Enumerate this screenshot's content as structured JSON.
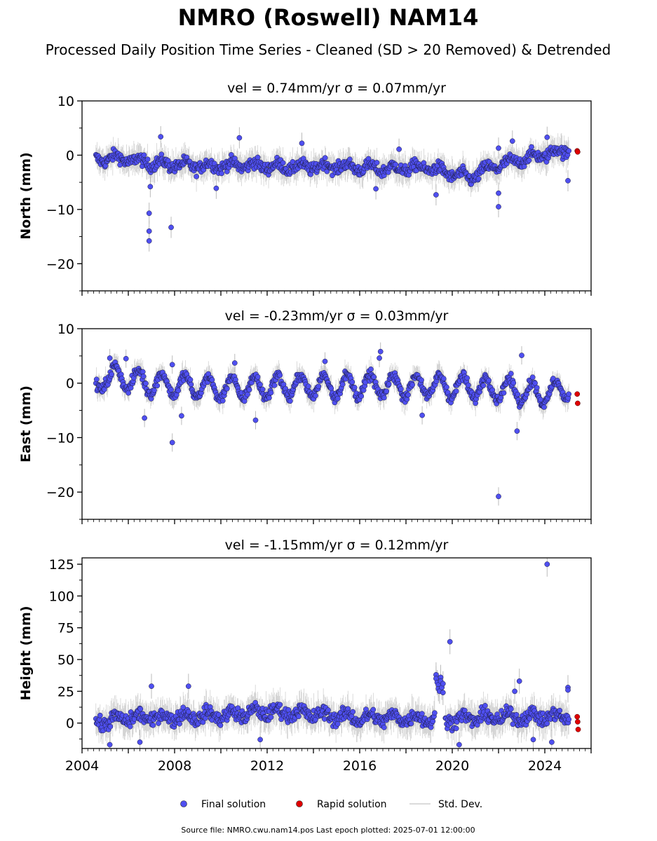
{
  "figure": {
    "title": "NMRO (Roswell) NAM14",
    "subtitle": "Processed Daily Position Time Series - Cleaned (SD > 20 Removed) & Detrended",
    "source": "Source file: NMRO.cwu.nam14.pos  Last epoch plotted: 2025-07-01 12:00:00"
  },
  "legend": {
    "final": "Final solution",
    "rapid": "Rapid solution",
    "sd": "Std. Dev."
  },
  "colors": {
    "final": "#4f4ff0",
    "rapid": "#e00000",
    "sd": "#bdbdbd"
  },
  "chart_data": [
    {
      "type": "scatter",
      "name": "north",
      "title": "vel = 0.74mm/yr   σ = 0.07mm/yr",
      "xlabel": "",
      "ylabel": "North (mm)",
      "xlim": [
        2004,
        2026
      ],
      "ylim": [
        -25,
        10
      ],
      "xticks": [
        2004,
        2008,
        2012,
        2016,
        2020,
        2024
      ],
      "yticks": [
        10,
        0,
        -10,
        -20
      ],
      "ytick_labels": [
        "10",
        "0",
        "−10",
        "−20"
      ],
      "grid": false,
      "show_xtick_labels": false,
      "baseline": [
        [
          2004.0,
          -1.0
        ],
        [
          2005.5,
          -0.5
        ],
        [
          2007.0,
          -1.5
        ],
        [
          2009.0,
          -2.0
        ],
        [
          2011.0,
          -1.8
        ],
        [
          2013.0,
          -2.2
        ],
        [
          2015.0,
          -2.0
        ],
        [
          2017.0,
          -2.5
        ],
        [
          2019.0,
          -2.3
        ],
        [
          2020.0,
          -3.5
        ],
        [
          2020.8,
          -4.2
        ],
        [
          2021.5,
          -2.5
        ],
        [
          2023.0,
          -0.8
        ],
        [
          2024.5,
          0.6
        ],
        [
          2025.1,
          1.0
        ]
      ],
      "noise": 1.4,
      "seasonal": 0.6,
      "outliers": [
        [
          2006.9,
          -15.8
        ],
        [
          2006.9,
          -14.0
        ],
        [
          2006.9,
          -10.7
        ],
        [
          2006.95,
          -5.8
        ],
        [
          2007.85,
          -13.3
        ],
        [
          2007.4,
          3.4
        ],
        [
          2010.8,
          3.2
        ],
        [
          2013.5,
          2.2
        ],
        [
          2017.7,
          1.1
        ],
        [
          2019.3,
          -7.3
        ],
        [
          2022.0,
          -9.5
        ],
        [
          2022.0,
          -7.0
        ],
        [
          2022.0,
          1.3
        ],
        [
          2022.6,
          2.6
        ],
        [
          2024.1,
          3.3
        ],
        [
          2025.0,
          -4.7
        ],
        [
          2009.8,
          -6.1
        ],
        [
          2016.7,
          -6.2
        ]
      ],
      "rapid": [
        [
          2025.4,
          0.8
        ],
        [
          2025.42,
          0.6
        ]
      ]
    },
    {
      "type": "scatter",
      "name": "east",
      "title": "vel = -0.23mm/yr   σ = 0.03mm/yr",
      "xlabel": "",
      "ylabel": "East (mm)",
      "xlim": [
        2004,
        2026
      ],
      "ylim": [
        -25,
        10
      ],
      "xticks": [
        2004,
        2008,
        2012,
        2016,
        2020,
        2024
      ],
      "yticks": [
        10,
        0,
        -10,
        -20
      ],
      "ytick_labels": [
        "10",
        "0",
        "−10",
        "−20"
      ],
      "grid": false,
      "show_xtick_labels": false,
      "baseline": [
        [
          2004.5,
          -2.0
        ],
        [
          2005.0,
          1.5
        ],
        [
          2007.0,
          0.0
        ],
        [
          2010.0,
          -1.0
        ],
        [
          2013.0,
          -0.5
        ],
        [
          2016.0,
          -0.5
        ],
        [
          2019.0,
          -0.5
        ],
        [
          2022.0,
          -1.0
        ],
        [
          2024.0,
          -2.0
        ],
        [
          2025.0,
          -1.0
        ]
      ],
      "noise": 1.2,
      "seasonal": 2.0,
      "outliers": [
        [
          2007.9,
          -10.9
        ],
        [
          2005.2,
          4.6
        ],
        [
          2005.9,
          4.5
        ],
        [
          2007.9,
          3.4
        ],
        [
          2008.3,
          -6.0
        ],
        [
          2010.6,
          3.7
        ],
        [
          2011.5,
          -6.8
        ],
        [
          2016.9,
          5.8
        ],
        [
          2018.7,
          -5.9
        ],
        [
          2022.0,
          -20.8
        ],
        [
          2022.8,
          -8.8
        ],
        [
          2023.0,
          5.1
        ],
        [
          2006.7,
          -6.4
        ],
        [
          2014.5,
          4.0
        ],
        [
          2016.85,
          4.6
        ]
      ],
      "rapid": [
        [
          2025.4,
          -2.0
        ],
        [
          2025.42,
          -3.7
        ]
      ]
    },
    {
      "type": "scatter",
      "name": "height",
      "title": "vel = -1.15mm/yr   σ = 0.12mm/yr",
      "xlabel": "",
      "ylabel": "Height (mm)",
      "xlim": [
        2004,
        2026
      ],
      "ylim": [
        -20,
        130
      ],
      "xticks": [
        2004,
        2008,
        2012,
        2016,
        2020,
        2024
      ],
      "xtick_labels": [
        "2004",
        "2008",
        "2012",
        "2016",
        "2020",
        "2024"
      ],
      "yticks": [
        125,
        100,
        75,
        50,
        25,
        0
      ],
      "ytick_labels": [
        "125",
        "100",
        "75",
        "50",
        "25",
        "0"
      ],
      "grid": false,
      "show_xtick_labels": true,
      "baseline": [
        [
          2004.5,
          0.0
        ],
        [
          2006.0,
          4.0
        ],
        [
          2008.0,
          5.0
        ],
        [
          2010.0,
          6.0
        ],
        [
          2012.0,
          9.0
        ],
        [
          2014.0,
          7.0
        ],
        [
          2016.0,
          4.0
        ],
        [
          2018.0,
          4.0
        ],
        [
          2019.5,
          3.0
        ],
        [
          2021.0,
          4.0
        ],
        [
          2023.0,
          5.0
        ],
        [
          2025.0,
          5.0
        ]
      ],
      "noise": 7.0,
      "seasonal": 3.0,
      "outliers": [
        [
          2024.1,
          125.0
        ],
        [
          2019.9,
          64.0
        ],
        [
          2007.0,
          29.0
        ],
        [
          2008.6,
          29.0
        ],
        [
          2022.9,
          33.0
        ],
        [
          2022.7,
          25.0
        ],
        [
          2019.3,
          38.0
        ],
        [
          2019.3,
          35.0
        ],
        [
          2019.35,
          32.0
        ],
        [
          2019.4,
          30.0
        ],
        [
          2019.4,
          27.0
        ],
        [
          2019.45,
          25.0
        ],
        [
          2019.5,
          36.0
        ],
        [
          2019.5,
          33.0
        ],
        [
          2019.55,
          28.0
        ],
        [
          2019.6,
          31.0
        ],
        [
          2019.6,
          24.0
        ],
        [
          2025.0,
          28.0
        ],
        [
          2025.0,
          26.0
        ],
        [
          2006.5,
          -15.0
        ],
        [
          2020.3,
          -17.0
        ],
        [
          2023.5,
          -13.0
        ],
        [
          2024.3,
          -15.0
        ],
        [
          2011.7,
          -13.0
        ],
        [
          2005.2,
          -17.0
        ]
      ],
      "rapid": [
        [
          2025.4,
          5.0
        ],
        [
          2025.42,
          1.0
        ],
        [
          2025.44,
          -5.0
        ]
      ]
    }
  ]
}
